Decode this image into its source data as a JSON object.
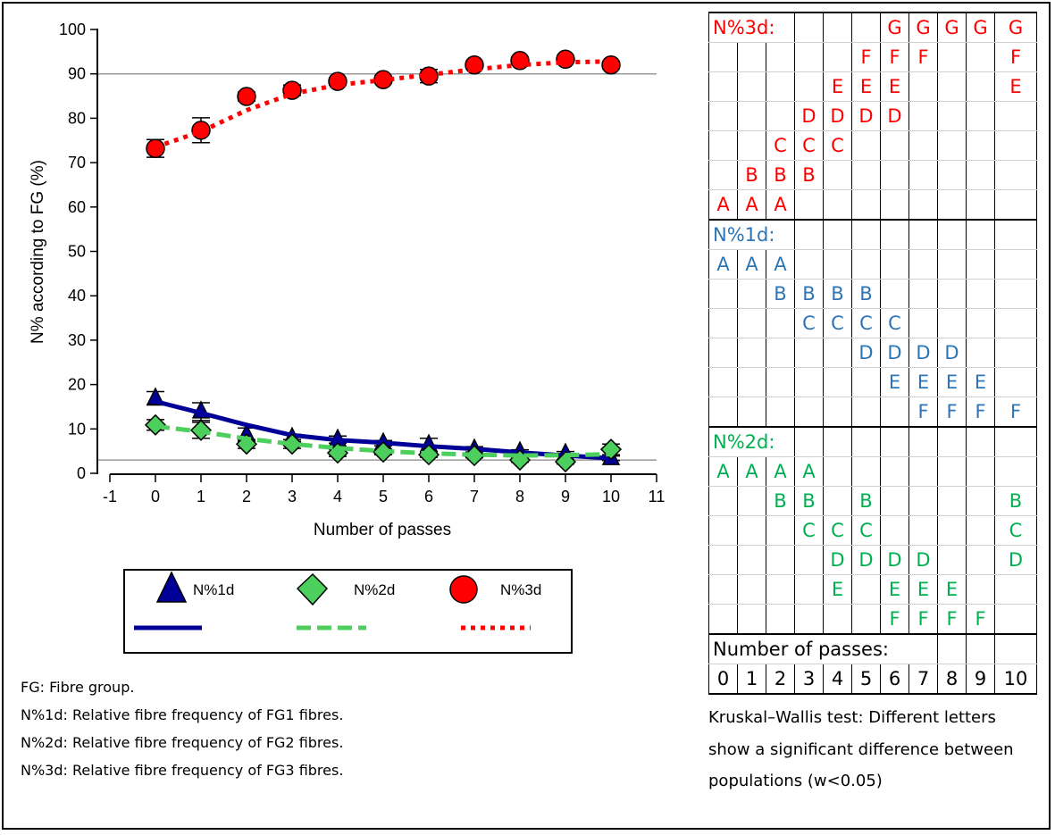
{
  "chart_data": {
    "type": "line",
    "xlabel": "Number of passes",
    "ylabel": "N% according to FG (%)",
    "xlim": [
      -1,
      11
    ],
    "ylim": [
      0,
      100
    ],
    "x_ticks": [
      "-1",
      "0",
      "1",
      "2",
      "3",
      "4",
      "5",
      "6",
      "7",
      "8",
      "9",
      "10",
      "11"
    ],
    "y_ticks": [
      "0",
      "10",
      "20",
      "30",
      "40",
      "50",
      "60",
      "70",
      "80",
      "90",
      "100"
    ],
    "reference_lines": [
      90,
      3
    ],
    "x": [
      0,
      1,
      2,
      3,
      4,
      5,
      6,
      7,
      8,
      9,
      10
    ],
    "series": [
      {
        "name": "N%1d",
        "marker": "triangle",
        "line": "solid",
        "color": "#000099",
        "values": [
          16.9,
          13.9,
          8.7,
          8.0,
          7.6,
          6.8,
          6.4,
          5.4,
          4.8,
          4.4,
          3.4
        ],
        "error": [
          1.5,
          2.0,
          1.5,
          0.8,
          0.8,
          0.6,
          1.5,
          0.6,
          0.5,
          0.5,
          0.5
        ],
        "trend": [
          16.2,
          13.6,
          10.9,
          8.6,
          7.5,
          6.9,
          6.1,
          5.5,
          4.7,
          4.0,
          3.4
        ]
      },
      {
        "name": "N%2d",
        "marker": "diamond",
        "line": "dashed",
        "color": "#4ccf5c",
        "values": [
          10.9,
          9.7,
          6.6,
          6.6,
          4.6,
          4.8,
          4.2,
          4.0,
          3.0,
          2.6,
          5.4
        ],
        "error": [
          1.2,
          1.8,
          1.0,
          1.0,
          0.8,
          0.6,
          0.6,
          0.5,
          0.5,
          0.5,
          1.2
        ],
        "trend": [
          10.6,
          9.4,
          7.8,
          6.6,
          5.7,
          5.0,
          4.5,
          4.2,
          4.0,
          4.1,
          4.3
        ]
      },
      {
        "name": "N%3d",
        "marker": "circle",
        "line": "dotted",
        "color": "#ff0000",
        "values": [
          73.2,
          77.3,
          84.9,
          86.3,
          88.3,
          88.7,
          89.5,
          92.0,
          93.0,
          93.3,
          92.0
        ],
        "error": [
          2.0,
          2.8,
          1.0,
          1.2,
          0.8,
          0.8,
          1.5,
          0.8,
          0.5,
          0.5,
          0.8
        ],
        "trend": [
          73.5,
          77.0,
          81.8,
          85.5,
          87.5,
          88.6,
          89.8,
          91.0,
          92.0,
          92.6,
          92.8
        ]
      }
    ],
    "legend": {
      "placement": "bottom",
      "entries": [
        "N%1d",
        "N%2d",
        "N%3d"
      ]
    }
  },
  "notes": [
    "FG: Fibre group.",
    "N%1d: Relative fibre frequency of FG1 fibres.",
    "N%2d: Relative fibre frequency of FG2 fibres.",
    "N%3d: Relative fibre frequency of FG3 fibres."
  ],
  "kruskal_table": {
    "groups": [
      {
        "label": "N%3d:",
        "color_class": "red",
        "rows": [
          [
            "",
            "",
            "",
            "",
            "",
            "",
            "G",
            "G",
            "G",
            "G",
            "G"
          ],
          [
            "",
            "",
            "",
            "",
            "",
            "F",
            "F",
            "F",
            "",
            "",
            "F"
          ],
          [
            "",
            "",
            "",
            "",
            "E",
            "E",
            "E",
            "",
            "",
            "",
            "E"
          ],
          [
            "",
            "",
            "",
            "D",
            "D",
            "D",
            "D",
            "",
            "",
            "",
            ""
          ],
          [
            "",
            "",
            "C",
            "C",
            "C",
            "",
            "",
            "",
            "",
            "",
            ""
          ],
          [
            "",
            "B",
            "B",
            "B",
            "",
            "",
            "",
            "",
            "",
            "",
            ""
          ],
          [
            "A",
            "A",
            "A",
            "",
            "",
            "",
            "",
            "",
            "",
            "",
            ""
          ]
        ]
      },
      {
        "label": "N%1d:",
        "color_class": "blue",
        "rows": [
          [
            "",
            "",
            "",
            "",
            "",
            "",
            "",
            "",
            "",
            "",
            ""
          ],
          [
            "A",
            "A",
            "A",
            "",
            "",
            "",
            "",
            "",
            "",
            "",
            ""
          ],
          [
            "",
            "",
            "B",
            "B",
            "B",
            "B",
            "",
            "",
            "",
            "",
            ""
          ],
          [
            "",
            "",
            "",
            "C",
            "C",
            "C",
            "C",
            "",
            "",
            "",
            ""
          ],
          [
            "",
            "",
            "",
            "",
            "",
            "D",
            "D",
            "D",
            "D",
            "",
            ""
          ],
          [
            "",
            "",
            "",
            "",
            "",
            "",
            "E",
            "E",
            "E",
            "E",
            ""
          ],
          [
            "",
            "",
            "",
            "",
            "",
            "",
            "",
            "F",
            "F",
            "F",
            "F"
          ]
        ]
      },
      {
        "label": "N%2d:",
        "color_class": "green",
        "rows": [
          [
            "",
            "",
            "",
            "",
            "",
            "",
            "",
            "",
            "",
            "",
            ""
          ],
          [
            "A",
            "A",
            "A",
            "A",
            "",
            "",
            "",
            "",
            "",
            "",
            ""
          ],
          [
            "",
            "",
            "B",
            "B",
            "",
            "B",
            "",
            "",
            "",
            "",
            "B"
          ],
          [
            "",
            "",
            "",
            "C",
            "C",
            "C",
            "",
            "",
            "",
            "",
            "C"
          ],
          [
            "",
            "",
            "",
            "",
            "D",
            "D",
            "D",
            "D",
            "",
            "",
            "D"
          ],
          [
            "",
            "",
            "",
            "",
            "E",
            "",
            "E",
            "E",
            "E",
            "",
            ""
          ],
          [
            "",
            "",
            "",
            "",
            "",
            "",
            "F",
            "F",
            "F",
            "F",
            ""
          ]
        ]
      }
    ],
    "passes_label": "Number of passes:",
    "passes": [
      "0",
      "1",
      "2",
      "3",
      "4",
      "5",
      "6",
      "7",
      "8",
      "9",
      "10"
    ],
    "note": "Kruskal–Wallis test: Different letters show a significant difference between populations (w<0.05)"
  }
}
